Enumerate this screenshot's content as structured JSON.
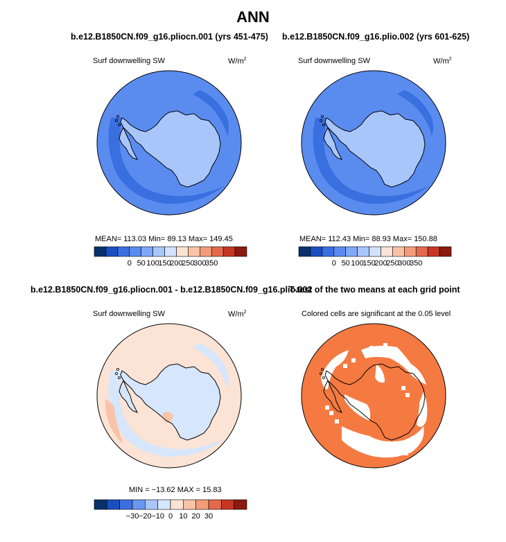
{
  "main_title": "ANN",
  "chart_data": [
    {
      "type": "heatmap",
      "projection": "south-polar-stereographic",
      "title": "b.e12.B1850CN.f09_g16.pliocn.001 (yrs 451-475)",
      "label": "Surf downwelling SW",
      "units_base": "W/m",
      "units_exp": "2",
      "stats_text": "MEAN= 113.03  Min=  89.13  Max= 149.45",
      "stats": {
        "mean": 113.03,
        "min": 89.13,
        "max": 149.45
      },
      "colorbar": {
        "ticks": [
          "0",
          "50",
          "100",
          "150",
          "200",
          "250",
          "300",
          "350"
        ],
        "levels": [
          0,
          50,
          100,
          150,
          200,
          250,
          300,
          350
        ],
        "colors": [
          "#08306b",
          "#1a4fc0",
          "#3a6fe0",
          "#5a8cf0",
          "#80a8f8",
          "#a9c6fb",
          "#d2e1fc",
          "#fbe3d5",
          "#f9c3a8",
          "#f39c7a",
          "#e36a4c",
          "#c63623",
          "#8b1a10"
        ]
      },
      "fill": {
        "ocean_far": "#5a8cf0",
        "ocean_band": "#3a6fe0",
        "land": "#a9c6fb"
      }
    },
    {
      "type": "heatmap",
      "projection": "south-polar-stereographic",
      "title": "b.e12.B1850CN.f09_g16.plio.002 (yrs 601-625)",
      "label": "Surf downwelling SW",
      "units_base": "W/m",
      "units_exp": "2",
      "stats_text": "MEAN= 112.43  Min=  88.93  Max= 150.88",
      "stats": {
        "mean": 112.43,
        "min": 88.93,
        "max": 150.88
      },
      "colorbar": {
        "ticks": [
          "0",
          "50",
          "100",
          "150",
          "200",
          "250",
          "300",
          "350"
        ],
        "levels": [
          0,
          50,
          100,
          150,
          200,
          250,
          300,
          350
        ],
        "colors": [
          "#08306b",
          "#1a4fc0",
          "#3a6fe0",
          "#5a8cf0",
          "#80a8f8",
          "#a9c6fb",
          "#d2e1fc",
          "#fbe3d5",
          "#f9c3a8",
          "#f39c7a",
          "#e36a4c",
          "#c63623",
          "#8b1a10"
        ]
      },
      "fill": {
        "ocean_far": "#5a8cf0",
        "ocean_band": "#3a6fe0",
        "land": "#a9c6fb"
      }
    },
    {
      "type": "heatmap",
      "projection": "south-polar-stereographic",
      "title": "b.e12.B1850CN.f09_g16.pliocn.001 - b.e12.B1850CN.f09_g16.plio.002",
      "label": "Surf downwelling SW",
      "units_base": "W/m",
      "units_exp": "2",
      "stats_text": "MIN = −13.62  MAX =  15.83",
      "stats": {
        "min": -13.62,
        "max": 15.83
      },
      "colorbar": {
        "ticks": [
          "−30",
          "−20",
          "−10",
          "0",
          "10",
          "20",
          "30"
        ],
        "levels": [
          -30,
          -20,
          -10,
          0,
          10,
          20,
          30
        ],
        "colors": [
          "#08306b",
          "#1a4fc0",
          "#3a6fe0",
          "#6a96f2",
          "#a9c6fb",
          "#d6e6fc",
          "#fbe3d5",
          "#f9c3a8",
          "#f39c7a",
          "#e36a4c",
          "#c63623",
          "#8b1a10"
        ]
      },
      "fill": {
        "ocean_far": "#fbe3d5",
        "ocean_band": "#d6e6fc",
        "land": "#d6e6fc"
      }
    },
    {
      "type": "heatmap",
      "projection": "south-polar-stereographic",
      "title": "T-test of the two means at each grid point",
      "label": "Colored cells are significant at the 0.05 level",
      "significance_level": 0.05,
      "fill": {
        "significant": "#f47a42",
        "not_significant": "#ffffff"
      }
    }
  ]
}
